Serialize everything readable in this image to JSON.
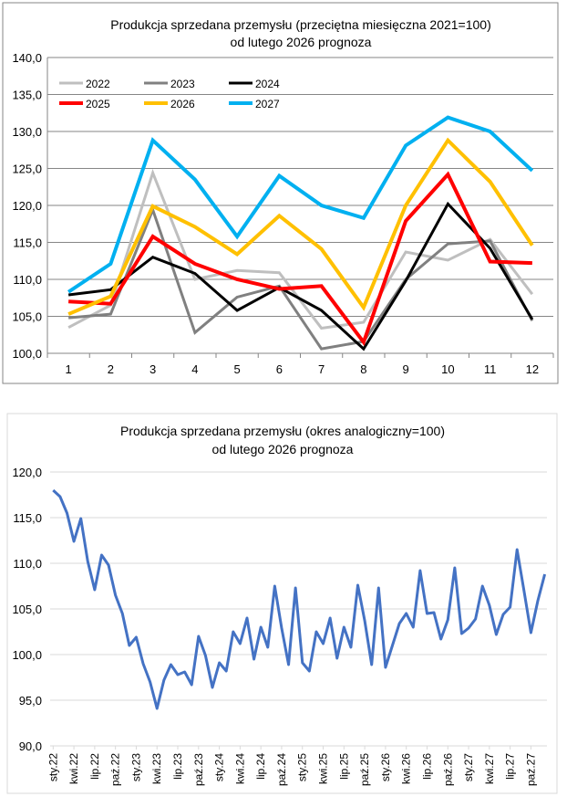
{
  "chart_data": [
    {
      "type": "line",
      "title": "Produkcja sprzedana przemysłu (przeciętna miesięczna 2021=100)",
      "subtitle": "od lutego 2026 prognoza",
      "xlabel": "",
      "ylabel": "",
      "categories": [
        "1",
        "2",
        "3",
        "4",
        "5",
        "6",
        "7",
        "8",
        "9",
        "10",
        "11",
        "12"
      ],
      "ylim": [
        100,
        140
      ],
      "yticks": [
        "100,0",
        "105,0",
        "110,0",
        "115,0",
        "120,0",
        "125,0",
        "130,0",
        "135,0",
        "140,0"
      ],
      "grid": true,
      "legend_position": "top-left",
      "series": [
        {
          "name": "2022",
          "color": "#bfbfbf",
          "values": [
            103.5,
            106.5,
            124.4,
            110.0,
            111.2,
            110.9,
            103.4,
            104.2,
            113.7,
            112.6,
            115.4,
            108.0
          ]
        },
        {
          "name": "2023",
          "color": "#808080",
          "values": [
            104.8,
            105.3,
            119.4,
            102.8,
            107.6,
            109.1,
            100.6,
            101.6,
            110.0,
            114.8,
            115.2,
            104.4
          ]
        },
        {
          "name": "2024",
          "color": "#000000",
          "values": [
            107.9,
            108.6,
            113.0,
            110.8,
            105.8,
            108.9,
            105.8,
            100.6,
            109.8,
            120.2,
            114.2,
            104.6
          ]
        },
        {
          "name": "2025",
          "color": "#ff0000",
          "values": [
            107.0,
            106.7,
            115.8,
            112.1,
            110.0,
            108.7,
            109.1,
            101.5,
            117.9,
            124.2,
            112.4,
            112.2
          ]
        },
        {
          "name": "2026",
          "color": "#ffc000",
          "values": [
            105.3,
            107.7,
            119.9,
            117.1,
            113.4,
            118.6,
            114.1,
            106.2,
            120.0,
            128.8,
            123.2,
            114.6
          ]
        },
        {
          "name": "2027",
          "color": "#00b0f0",
          "values": [
            108.3,
            112.1,
            128.8,
            123.5,
            115.8,
            124.0,
            120.0,
            118.3,
            128.1,
            131.9,
            130.0,
            124.7
          ]
        }
      ]
    },
    {
      "type": "line",
      "title": "Produkcja sprzedana przemysłu (okres analogiczny=100)",
      "subtitle": "od lutego 2026 prognoza",
      "xlabel": "",
      "ylabel": "",
      "ylim": [
        90,
        120
      ],
      "yticks": [
        "90,0",
        "95,0",
        "100,0",
        "105,0",
        "110,0",
        "115,0",
        "120,0"
      ],
      "grid": true,
      "xtick_labels": [
        "sty.22",
        "kwi.22",
        "lip.22",
        "paź.22",
        "sty.23",
        "kwi.23",
        "lip.23",
        "paź.23",
        "sty.24",
        "kwi.24",
        "lip.24",
        "paź.24",
        "sty.25",
        "kwi.25",
        "lip.25",
        "paź.25",
        "sty.26",
        "kwi.26",
        "lip.26",
        "paź.26",
        "sty.27",
        "kwi.27",
        "lip.27",
        "paź.27"
      ],
      "series": [
        {
          "name": "okres analogiczny=100",
          "color": "#4472c4",
          "values": [
            118.0,
            117.3,
            115.5,
            112.4,
            114.9,
            110.2,
            107.1,
            110.9,
            109.8,
            106.5,
            104.5,
            101.0,
            101.9,
            99.0,
            97.0,
            94.1,
            97.2,
            98.9,
            97.8,
            98.1,
            96.7,
            102.0,
            99.9,
            96.4,
            99.1,
            98.2,
            102.5,
            101.2,
            104.0,
            99.5,
            103.0,
            100.8,
            107.5,
            102.9,
            98.9,
            107.3,
            99.1,
            98.2,
            102.5,
            101.2,
            104.0,
            99.6,
            103.0,
            100.8,
            107.6,
            103.7,
            98.9,
            107.3,
            98.6,
            101.0,
            103.4,
            104.5,
            103.0,
            109.2,
            104.5,
            104.6,
            101.7,
            103.8,
            109.5,
            102.3,
            102.9,
            103.9,
            107.5,
            105.4,
            102.2,
            104.4,
            105.2,
            111.5,
            107.0,
            102.4,
            105.9,
            108.8
          ]
        }
      ]
    }
  ]
}
